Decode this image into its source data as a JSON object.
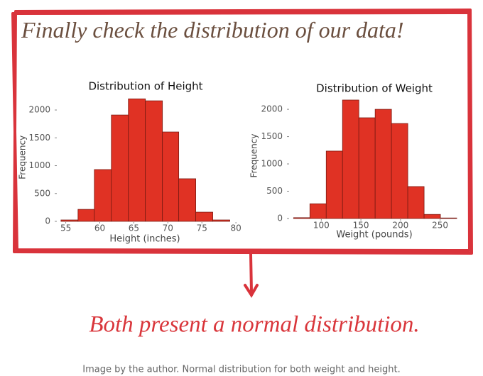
{
  "heading": "Finally check the distribution of our data!",
  "conclusion": "Both present a normal distribution.",
  "caption": "Image by the author. Normal distribution for both weight and height.",
  "chart_data": [
    {
      "type": "histogram",
      "title": "Distribution of Height",
      "x_label": "Height (inches)",
      "y_label": "Frequency",
      "bins": [
        54.3,
        56.8,
        59.2,
        61.7,
        64.2,
        66.7,
        69.2,
        71.6,
        74.1,
        76.6,
        79.1
      ],
      "values": [
        25,
        215,
        930,
        1910,
        2200,
        2165,
        1605,
        765,
        165,
        25
      ],
      "color": "#e03224",
      "xlim": [
        54,
        80.3
      ],
      "xticks": [
        55,
        60,
        65,
        70,
        75,
        80
      ],
      "ylim": [
        0,
        2300
      ],
      "yticks": [
        0,
        500,
        1000,
        1500,
        2000
      ]
    },
    {
      "type": "histogram",
      "title": "Distribution of Weight",
      "x_label": "Weight (pounds)",
      "y_label": "Frequency",
      "bins": [
        65,
        85.6,
        106.2,
        126.8,
        147.4,
        168,
        188.6,
        209.2,
        229.8,
        250.4,
        271
      ],
      "values": [
        15,
        270,
        1235,
        2170,
        1845,
        2000,
        1740,
        585,
        75,
        10
      ],
      "color": "#e03224",
      "xlim": [
        62,
        271
      ],
      "xticks": [
        100,
        150,
        200,
        250
      ],
      "ylim": [
        0,
        2300
      ],
      "yticks": [
        0,
        500,
        1000,
        1500,
        2000
      ]
    }
  ]
}
